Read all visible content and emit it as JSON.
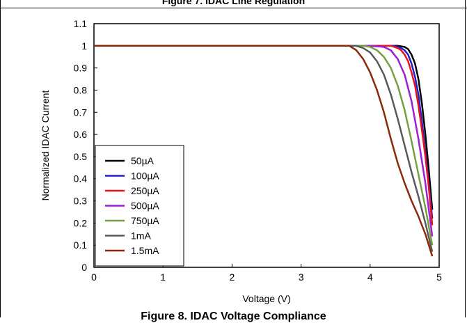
{
  "captions": {
    "top": "Figure 7. IDAC Line Regulation",
    "bottom": "Figure 8. IDAC Voltage Compliance"
  },
  "chart_data": {
    "type": "line",
    "xlabel": "Voltage (V)",
    "ylabel": "Normalized IDAC Current",
    "xlim": [
      0,
      5
    ],
    "ylim": [
      0,
      1.1
    ],
    "x_ticks": [
      "0",
      "1",
      "2",
      "3",
      "4",
      "5"
    ],
    "y_ticks": [
      "0",
      "0.1",
      "0.2",
      "0.3",
      "0.4",
      "0.5",
      "0.6",
      "0.7",
      "0.8",
      "0.9",
      "1",
      "1.1"
    ],
    "grid": false,
    "legend_position": "bottom-left",
    "series": [
      {
        "name": "50µA",
        "color": "#000000",
        "x": [
          0,
          4.2,
          4.4,
          4.5,
          4.55,
          4.6,
          4.65,
          4.7,
          4.75,
          4.8,
          4.85,
          4.9
        ],
        "y": [
          1.0,
          1.0,
          1.0,
          0.995,
          0.985,
          0.96,
          0.92,
          0.85,
          0.74,
          0.6,
          0.44,
          0.26
        ]
      },
      {
        "name": "100µA",
        "color": "#1f1fcc",
        "x": [
          0,
          4.15,
          4.35,
          4.45,
          4.5,
          4.55,
          4.6,
          4.65,
          4.7,
          4.75,
          4.8,
          4.85,
          4.9
        ],
        "y": [
          1.0,
          1.0,
          1.0,
          0.99,
          0.98,
          0.96,
          0.92,
          0.86,
          0.78,
          0.66,
          0.52,
          0.38,
          0.22
        ]
      },
      {
        "name": "250µA",
        "color": "#e8141e",
        "x": [
          0,
          4.1,
          4.3,
          4.4,
          4.45,
          4.5,
          4.55,
          4.6,
          4.65,
          4.7,
          4.75,
          4.8,
          4.85,
          4.9
        ],
        "y": [
          1.0,
          1.0,
          1.0,
          0.99,
          0.98,
          0.96,
          0.93,
          0.88,
          0.82,
          0.73,
          0.62,
          0.5,
          0.36,
          0.19
        ]
      },
      {
        "name": "500µA",
        "color": "#9b1fd6",
        "x": [
          0,
          4.0,
          4.2,
          4.3,
          4.4,
          4.5,
          4.6,
          4.7,
          4.8,
          4.9
        ],
        "y": [
          1.0,
          1.0,
          0.995,
          0.98,
          0.94,
          0.87,
          0.75,
          0.58,
          0.38,
          0.14
        ]
      },
      {
        "name": "750µA",
        "color": "#76a040",
        "x": [
          0,
          3.9,
          4.0,
          4.1,
          4.2,
          4.3,
          4.4,
          4.5,
          4.6,
          4.7,
          4.8,
          4.9
        ],
        "y": [
          1.0,
          1.0,
          0.995,
          0.98,
          0.95,
          0.9,
          0.82,
          0.71,
          0.57,
          0.42,
          0.27,
          0.1
        ]
      },
      {
        "name": "1mA",
        "color": "#595959",
        "x": [
          0,
          3.8,
          3.9,
          4.0,
          4.1,
          4.2,
          4.3,
          4.4,
          4.5,
          4.6,
          4.7,
          4.8,
          4.9
        ],
        "y": [
          1.0,
          1.0,
          0.99,
          0.97,
          0.93,
          0.87,
          0.78,
          0.67,
          0.55,
          0.43,
          0.32,
          0.2,
          0.07
        ]
      },
      {
        "name": "1.5mA",
        "color": "#8b2a0a",
        "x": [
          0,
          3.7,
          3.8,
          3.9,
          4.0,
          4.1,
          4.2,
          4.3,
          4.4,
          4.5,
          4.6,
          4.7,
          4.8,
          4.9
        ],
        "y": [
          1.0,
          1.0,
          0.98,
          0.94,
          0.88,
          0.8,
          0.7,
          0.58,
          0.47,
          0.38,
          0.3,
          0.23,
          0.15,
          0.05
        ]
      }
    ]
  }
}
